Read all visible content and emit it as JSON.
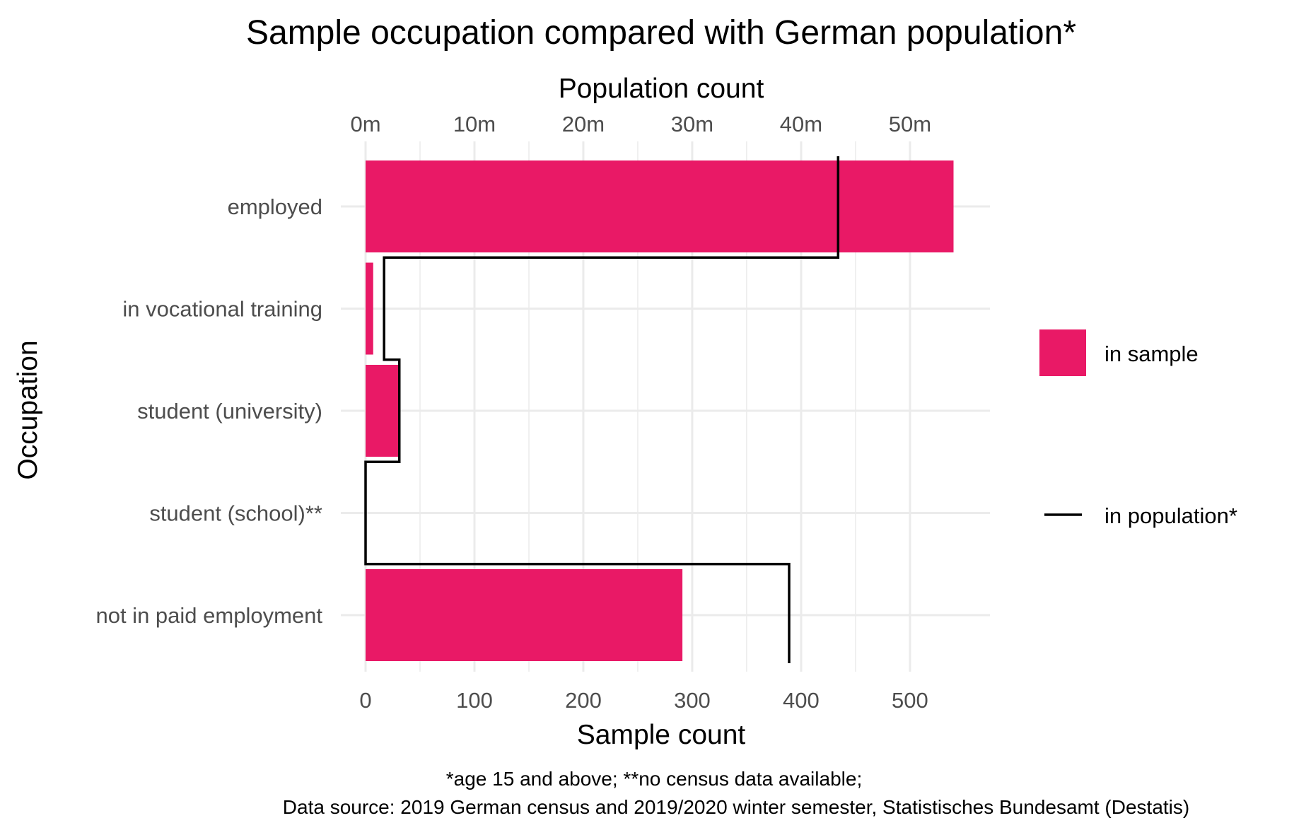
{
  "chart_data": {
    "type": "bar",
    "title": "Sample occupation compared with German population*",
    "ylabel": "Occupation",
    "xlabel_bottom": "Sample count",
    "xlabel_top": "Population count",
    "categories": [
      "employed",
      "in vocational training",
      "student (university)",
      "student (school)**",
      "not in paid employment"
    ],
    "series": [
      {
        "name": "in sample",
        "type": "bar",
        "color": "#E91966",
        "values": [
          540,
          7,
          31,
          0,
          291
        ]
      },
      {
        "name": "in population*",
        "type": "step",
        "color": "#000000",
        "values": [
          43.4,
          1.7,
          3.1,
          0,
          38.9
        ],
        "unit": "m"
      }
    ],
    "x_bottom": {
      "lim": [
        0,
        565
      ],
      "ticks": [
        0,
        100,
        200,
        300,
        400,
        500
      ],
      "tick_labels": [
        "0",
        "100",
        "200",
        "300",
        "400",
        "500"
      ]
    },
    "x_top": {
      "lim": [
        0,
        56.5
      ],
      "ticks": [
        0,
        10,
        20,
        30,
        40,
        50
      ],
      "tick_labels": [
        "0m",
        "10m",
        "20m",
        "30m",
        "40m",
        "50m"
      ]
    },
    "grid": true,
    "legend_position": "right",
    "caption_lines": [
      "*age 15 and above; **no census data available;",
      "Data source: 2019 German census and 2019/2020 winter semester, Statistisches Bundesamt (Destatis)"
    ]
  }
}
